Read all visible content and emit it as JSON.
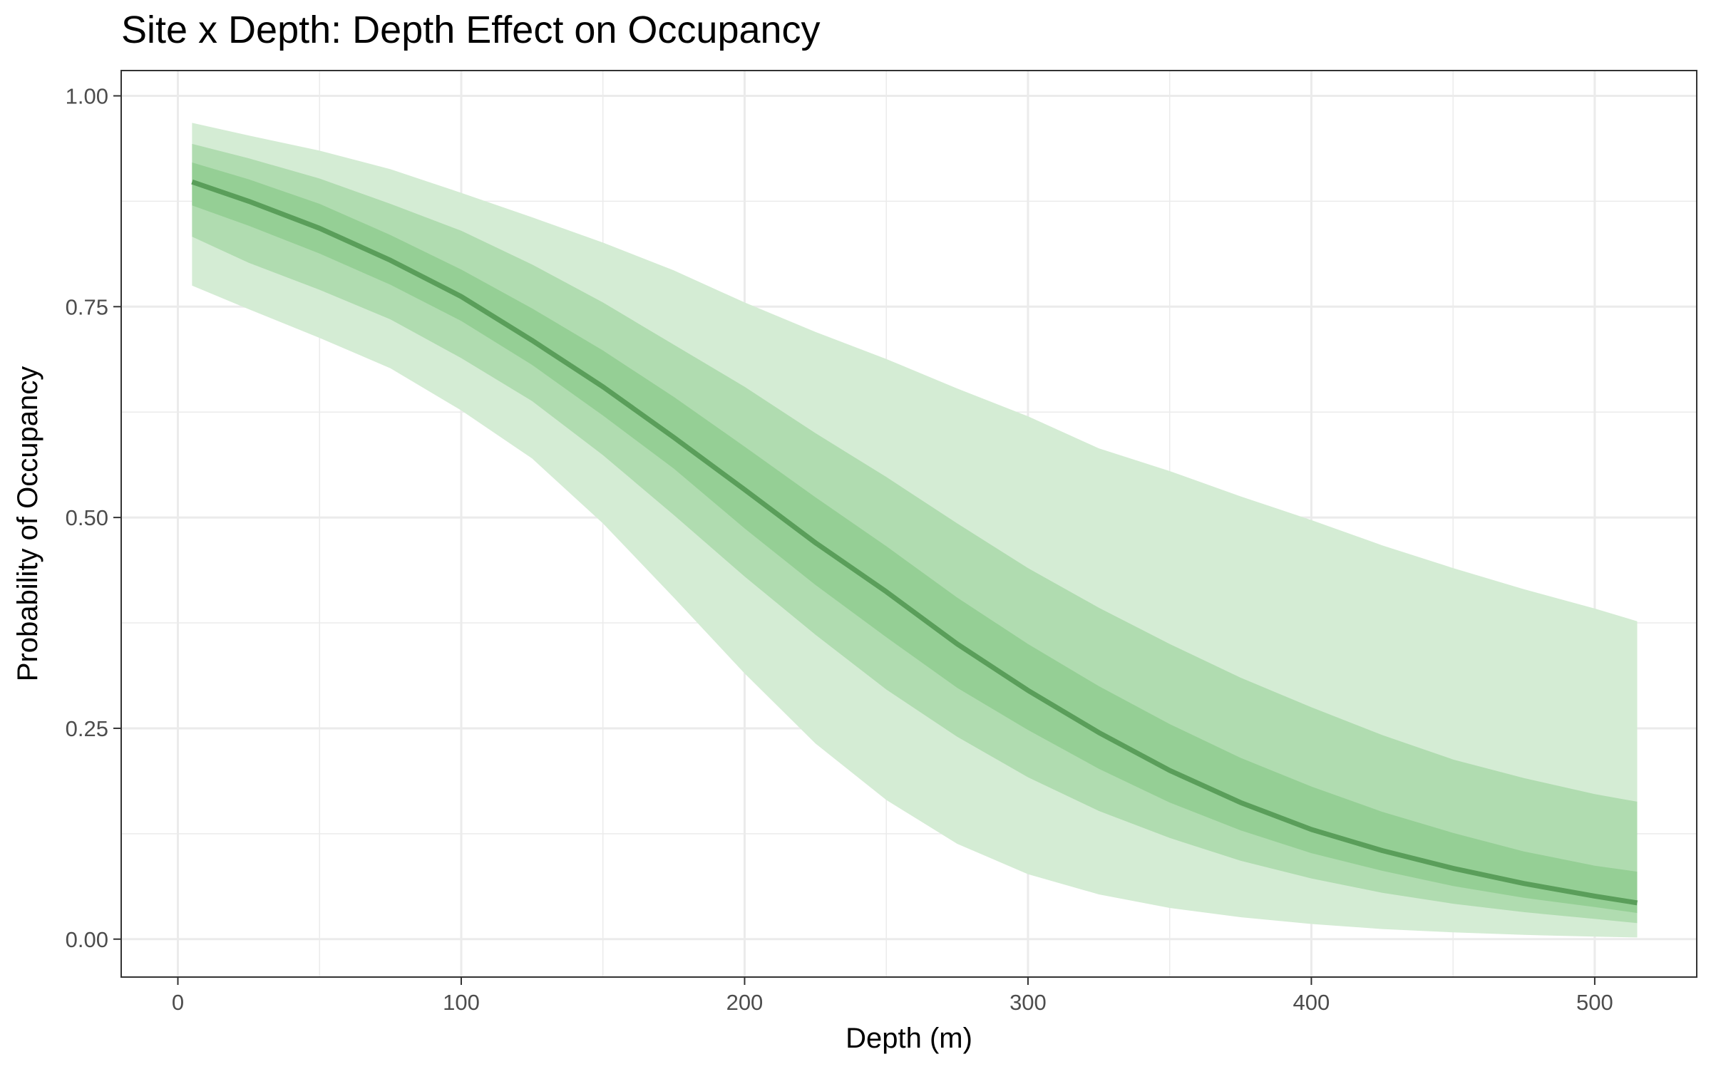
{
  "chart_data": {
    "type": "area",
    "title": "Site x Depth: Depth Effect on Occupancy",
    "xlabel": "Depth (m)",
    "ylabel": "Probability of Occupancy",
    "xlim": [
      -20,
      536
    ],
    "ylim": [
      -0.045,
      1.03
    ],
    "x_ticks": [
      0,
      100,
      200,
      300,
      400,
      500
    ],
    "x_tick_labels": [
      "0",
      "100",
      "200",
      "300",
      "400",
      "500"
    ],
    "y_ticks": [
      0,
      0.25,
      0.5,
      0.75,
      1
    ],
    "y_tick_labels": [
      "0.00",
      "0.25",
      "0.50",
      "0.75",
      "1.00"
    ],
    "grid": true,
    "x": [
      5,
      25,
      50,
      75,
      100,
      125,
      150,
      175,
      200,
      225,
      250,
      275,
      300,
      325,
      350,
      375,
      400,
      425,
      450,
      475,
      500,
      515
    ],
    "series": [
      {
        "role": "median",
        "values": [
          0.898,
          0.875,
          0.843,
          0.805,
          0.762,
          0.71,
          0.655,
          0.595,
          0.533,
          0.47,
          0.412,
          0.35,
          0.295,
          0.245,
          0.2,
          0.162,
          0.13,
          0.105,
          0.084,
          0.066,
          0.051,
          0.043
        ]
      },
      {
        "role": "band-outer",
        "lower": [
          0.775,
          0.747,
          0.713,
          0.677,
          0.627,
          0.57,
          0.493,
          0.405,
          0.315,
          0.232,
          0.165,
          0.113,
          0.077,
          0.053,
          0.037,
          0.026,
          0.018,
          0.012,
          0.008,
          0.005,
          0.003,
          0.002
        ],
        "upper": [
          0.968,
          0.953,
          0.935,
          0.913,
          0.885,
          0.856,
          0.826,
          0.793,
          0.755,
          0.72,
          0.688,
          0.653,
          0.62,
          0.582,
          0.555,
          0.525,
          0.497,
          0.467,
          0.44,
          0.415,
          0.392,
          0.377
        ]
      },
      {
        "role": "band-middle",
        "lower": [
          0.833,
          0.802,
          0.77,
          0.735,
          0.689,
          0.638,
          0.574,
          0.503,
          0.43,
          0.361,
          0.296,
          0.24,
          0.192,
          0.152,
          0.12,
          0.093,
          0.072,
          0.055,
          0.042,
          0.032,
          0.024,
          0.019
        ],
        "upper": [
          0.943,
          0.926,
          0.902,
          0.872,
          0.84,
          0.8,
          0.755,
          0.705,
          0.655,
          0.6,
          0.548,
          0.493,
          0.44,
          0.393,
          0.35,
          0.31,
          0.275,
          0.242,
          0.213,
          0.191,
          0.172,
          0.163
        ]
      },
      {
        "role": "band-inner",
        "lower": [
          0.87,
          0.846,
          0.813,
          0.776,
          0.733,
          0.681,
          0.621,
          0.558,
          0.487,
          0.42,
          0.358,
          0.298,
          0.248,
          0.202,
          0.162,
          0.129,
          0.102,
          0.081,
          0.063,
          0.049,
          0.038,
          0.031
        ],
        "upper": [
          0.921,
          0.901,
          0.872,
          0.835,
          0.794,
          0.748,
          0.698,
          0.643,
          0.584,
          0.524,
          0.466,
          0.405,
          0.35,
          0.3,
          0.255,
          0.215,
          0.181,
          0.151,
          0.126,
          0.104,
          0.087,
          0.08
        ]
      }
    ],
    "colors": {
      "band_outer": "#d4ecd4",
      "band_middle": "#b0dcb0",
      "band_inner": "#95cf95",
      "line": "#5a9e5a",
      "grid": "#ebebeb",
      "panel_border": "#333333",
      "tick_text": "#4d4d4d"
    }
  }
}
